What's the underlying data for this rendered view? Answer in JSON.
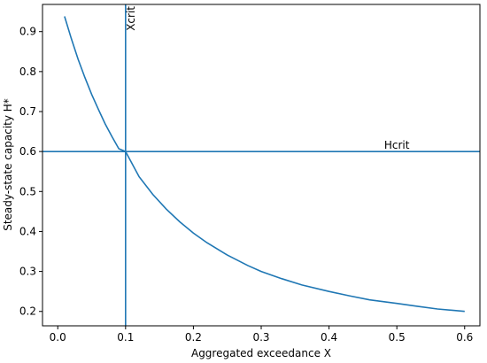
{
  "chart_data": {
    "type": "line",
    "xlabel": "Aggregated exceedance X",
    "ylabel": "Steady-state capacity H*",
    "xlim": [
      -0.0225,
      0.6225
    ],
    "ylim": [
      0.164,
      0.968
    ],
    "xticks": [
      0.0,
      0.1,
      0.2,
      0.3,
      0.4,
      0.5,
      0.6
    ],
    "xtick_labels": [
      "0.0",
      "0.1",
      "0.2",
      "0.3",
      "0.4",
      "0.5",
      "0.6"
    ],
    "yticks": [
      0.2,
      0.3,
      0.4,
      0.5,
      0.6,
      0.7,
      0.8,
      0.9
    ],
    "ytick_labels": [
      "0.2",
      "0.3",
      "0.4",
      "0.5",
      "0.6",
      "0.7",
      "0.8",
      "0.9"
    ],
    "grid": false,
    "color": "#1f77b4",
    "series": [
      {
        "x": [
          0.01,
          0.02,
          0.03,
          0.04,
          0.05,
          0.06,
          0.07,
          0.08,
          0.09,
          0.1,
          0.12,
          0.14,
          0.16,
          0.18,
          0.2,
          0.22,
          0.25,
          0.28,
          0.3,
          0.33,
          0.36,
          0.4,
          0.43,
          0.46,
          0.5,
          0.53,
          0.56,
          0.6
        ],
        "y": [
          0.938,
          0.882,
          0.831,
          0.785,
          0.743,
          0.705,
          0.669,
          0.637,
          0.607,
          0.6,
          0.537,
          0.493,
          0.456,
          0.424,
          0.396,
          0.372,
          0.341,
          0.315,
          0.3,
          0.282,
          0.266,
          0.25,
          0.239,
          0.229,
          0.22,
          0.213,
          0.206,
          0.2
        ]
      }
    ],
    "vlines": [
      {
        "x": 0.1,
        "label": "Xcrit"
      }
    ],
    "hlines": [
      {
        "y": 0.6,
        "label": "Hcrit"
      }
    ]
  }
}
